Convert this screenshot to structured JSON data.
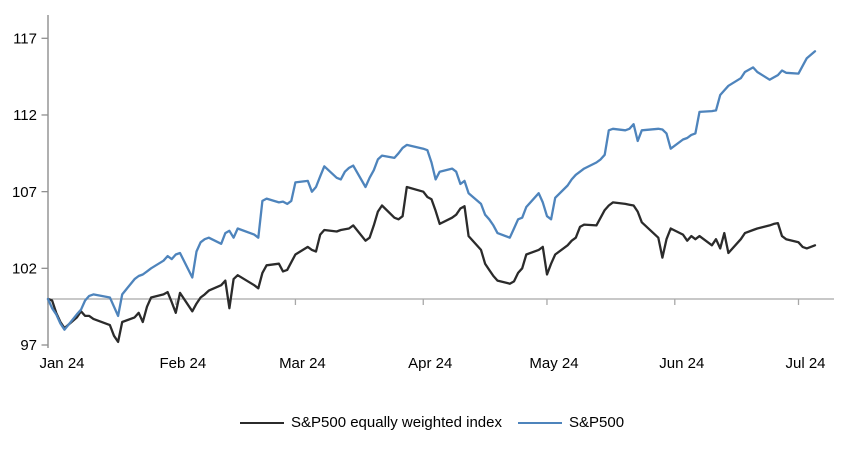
{
  "chart_data": {
    "type": "line",
    "title": "",
    "y_axis": {
      "range": [
        97,
        117
      ],
      "ticks": [
        97,
        102,
        107,
        112,
        117
      ],
      "tick_labels": [
        "97",
        "102",
        "107",
        "112",
        "117"
      ]
    },
    "x_axis": {
      "tick_labels": [
        "Jan 24",
        "Feb 24",
        "Mar 24",
        "Apr 24",
        "May 24",
        "Jun 24",
        "Jul 24"
      ],
      "month_day_offsets": [
        0,
        31,
        60,
        91,
        121,
        152,
        182
      ],
      "range_days": [
        0,
        186
      ]
    },
    "baseline_value": 100,
    "grid": "off",
    "legend_position": "bottom",
    "colors": {
      "equal_weight_line": "#2b2b2b",
      "sp500_line": "#4e84bc",
      "axis": "#8f8f8f",
      "baseline": "#a8a8a8"
    },
    "series": [
      {
        "name": "S&P500 equally weighted index",
        "color": "#2b2b2b",
        "points": [
          [
            0,
            100
          ],
          [
            1,
            99.9
          ],
          [
            2,
            99.1
          ],
          [
            3,
            98.5
          ],
          [
            4,
            98.1
          ],
          [
            7,
            98.8
          ],
          [
            8,
            99.2
          ],
          [
            9,
            98.9
          ],
          [
            10,
            98.9
          ],
          [
            11,
            98.7
          ],
          [
            15,
            98.3
          ],
          [
            16,
            97.6
          ],
          [
            17,
            97.2
          ],
          [
            18,
            98.5
          ],
          [
            21,
            98.8
          ],
          [
            22,
            99.1
          ],
          [
            23,
            98.5
          ],
          [
            24,
            99.5
          ],
          [
            25,
            100.1
          ],
          [
            28,
            100.3
          ],
          [
            29,
            100.45
          ],
          [
            30,
            99.8
          ],
          [
            31,
            99.1
          ],
          [
            32,
            100.4
          ],
          [
            35,
            99.2
          ],
          [
            36,
            99.7
          ],
          [
            37,
            100.1
          ],
          [
            38,
            100.3
          ],
          [
            39,
            100.55
          ],
          [
            42,
            100.9
          ],
          [
            43,
            101.2
          ],
          [
            44,
            99.4
          ],
          [
            45,
            101.3
          ],
          [
            46,
            101.55
          ],
          [
            50,
            100.9
          ],
          [
            51,
            100.7
          ],
          [
            52,
            101.7
          ],
          [
            53,
            102.2
          ],
          [
            56,
            102.3
          ],
          [
            57,
            101.8
          ],
          [
            58,
            101.9
          ],
          [
            59,
            102.4
          ],
          [
            60,
            102.9
          ],
          [
            63,
            103.4
          ],
          [
            64,
            103.2
          ],
          [
            65,
            103.1
          ],
          [
            66,
            104.2
          ],
          [
            67,
            104.5
          ],
          [
            70,
            104.4
          ],
          [
            71,
            104.5
          ],
          [
            72,
            104.55
          ],
          [
            73,
            104.6
          ],
          [
            74,
            104.8
          ],
          [
            77,
            103.8
          ],
          [
            78,
            104
          ],
          [
            79,
            104.8
          ],
          [
            80,
            105.7
          ],
          [
            81,
            106.1
          ],
          [
            84,
            105.3
          ],
          [
            85,
            105.2
          ],
          [
            86,
            105.4
          ],
          [
            87,
            107.3
          ],
          [
            91,
            107
          ],
          [
            92,
            106.65
          ],
          [
            93,
            106.5
          ],
          [
            94,
            105.75
          ],
          [
            95,
            104.9
          ],
          [
            98,
            105.3
          ],
          [
            99,
            105.5
          ],
          [
            100,
            105.9
          ],
          [
            101,
            106.05
          ],
          [
            102,
            104.1
          ],
          [
            105,
            103.2
          ],
          [
            106,
            102.3
          ],
          [
            107,
            101.9
          ],
          [
            108,
            101.5
          ],
          [
            109,
            101.2
          ],
          [
            112,
            101
          ],
          [
            113,
            101.15
          ],
          [
            114,
            101.7
          ],
          [
            115,
            102
          ],
          [
            116,
            102.9
          ],
          [
            119,
            103.2
          ],
          [
            120,
            103.4
          ],
          [
            121,
            101.6
          ],
          [
            122,
            102.3
          ],
          [
            123,
            102.9
          ],
          [
            126,
            103.5
          ],
          [
            127,
            103.8
          ],
          [
            128,
            104
          ],
          [
            129,
            104.7
          ],
          [
            130,
            104.85
          ],
          [
            133,
            104.8
          ],
          [
            134,
            105.3
          ],
          [
            135,
            105.8
          ],
          [
            136,
            106.1
          ],
          [
            137,
            106.3
          ],
          [
            140,
            106.2
          ],
          [
            141,
            106.15
          ],
          [
            142,
            106.1
          ],
          [
            143,
            105.7
          ],
          [
            144,
            105
          ],
          [
            148,
            104
          ],
          [
            149,
            102.7
          ],
          [
            150,
            103.9
          ],
          [
            151,
            104.6
          ],
          [
            154,
            104.2
          ],
          [
            155,
            103.8
          ],
          [
            156,
            104.1
          ],
          [
            157,
            103.9
          ],
          [
            158,
            104.1
          ],
          [
            161,
            103.5
          ],
          [
            162,
            103.9
          ],
          [
            163,
            103.3
          ],
          [
            164,
            104.3
          ],
          [
            165,
            103
          ],
          [
            168,
            103.9
          ],
          [
            169,
            104.3
          ],
          [
            171,
            104.5
          ],
          [
            172,
            104.6
          ],
          [
            175,
            104.8
          ],
          [
            176,
            104.9
          ],
          [
            177,
            104.95
          ],
          [
            178,
            104.1
          ],
          [
            179,
            103.9
          ],
          [
            182,
            103.7
          ],
          [
            183,
            103.4
          ],
          [
            184,
            103.3
          ],
          [
            186,
            103.5
          ]
        ]
      },
      {
        "name": "S&P500",
        "color": "#4e84bc",
        "points": [
          [
            0,
            100
          ],
          [
            1,
            99.4
          ],
          [
            2,
            99
          ],
          [
            3,
            98.4
          ],
          [
            4,
            98
          ],
          [
            7,
            99
          ],
          [
            8,
            99.3
          ],
          [
            9,
            99.9
          ],
          [
            10,
            100.2
          ],
          [
            11,
            100.3
          ],
          [
            15,
            100.1
          ],
          [
            16,
            99.5
          ],
          [
            17,
            98.9
          ],
          [
            18,
            100.3
          ],
          [
            21,
            101.3
          ],
          [
            22,
            101.5
          ],
          [
            23,
            101.6
          ],
          [
            24,
            101.8
          ],
          [
            25,
            102
          ],
          [
            28,
            102.5
          ],
          [
            29,
            102.8
          ],
          [
            30,
            102.6
          ],
          [
            31,
            102.9
          ],
          [
            32,
            103
          ],
          [
            35,
            101.4
          ],
          [
            36,
            103.1
          ],
          [
            37,
            103.7
          ],
          [
            38,
            103.9
          ],
          [
            39,
            104
          ],
          [
            42,
            103.6
          ],
          [
            43,
            104.3
          ],
          [
            44,
            104.45
          ],
          [
            45,
            104
          ],
          [
            46,
            104.6
          ],
          [
            50,
            104.2
          ],
          [
            51,
            104
          ],
          [
            52,
            106.4
          ],
          [
            53,
            106.55
          ],
          [
            56,
            106.3
          ],
          [
            57,
            106.35
          ],
          [
            58,
            106.2
          ],
          [
            59,
            106.4
          ],
          [
            60,
            107.6
          ],
          [
            63,
            107.7
          ],
          [
            64,
            107
          ],
          [
            65,
            107.3
          ],
          [
            66,
            108
          ],
          [
            67,
            108.65
          ],
          [
            70,
            107.9
          ],
          [
            71,
            107.8
          ],
          [
            72,
            108.3
          ],
          [
            73,
            108.55
          ],
          [
            74,
            108.7
          ],
          [
            77,
            107.3
          ],
          [
            78,
            107.9
          ],
          [
            79,
            108.4
          ],
          [
            80,
            109.1
          ],
          [
            81,
            109.35
          ],
          [
            84,
            109.2
          ],
          [
            85,
            109.5
          ],
          [
            86,
            109.85
          ],
          [
            87,
            110.05
          ],
          [
            91,
            109.8
          ],
          [
            92,
            109.7
          ],
          [
            93,
            108.9
          ],
          [
            94,
            107.8
          ],
          [
            95,
            108.3
          ],
          [
            98,
            108.5
          ],
          [
            99,
            108.3
          ],
          [
            100,
            107.5
          ],
          [
            101,
            107.7
          ],
          [
            102,
            106.9
          ],
          [
            105,
            106.2
          ],
          [
            106,
            105.5
          ],
          [
            107,
            105.2
          ],
          [
            108,
            104.8
          ],
          [
            109,
            104.3
          ],
          [
            112,
            104
          ],
          [
            113,
            104.6
          ],
          [
            114,
            105.2
          ],
          [
            115,
            105.3
          ],
          [
            116,
            106
          ],
          [
            119,
            106.9
          ],
          [
            120,
            106.3
          ],
          [
            121,
            105.4
          ],
          [
            122,
            105.2
          ],
          [
            123,
            106.6
          ],
          [
            126,
            107.4
          ],
          [
            127,
            107.8
          ],
          [
            128,
            108.1
          ],
          [
            129,
            108.3
          ],
          [
            130,
            108.5
          ],
          [
            133,
            108.9
          ],
          [
            134,
            109.1
          ],
          [
            135,
            109.4
          ],
          [
            136,
            111
          ],
          [
            137,
            111.1
          ],
          [
            140,
            111
          ],
          [
            141,
            111.1
          ],
          [
            142,
            111.4
          ],
          [
            143,
            110.3
          ],
          [
            144,
            111
          ],
          [
            148,
            111.1
          ],
          [
            149,
            111.05
          ],
          [
            150,
            110.8
          ],
          [
            151,
            109.8
          ],
          [
            154,
            110.4
          ],
          [
            155,
            110.5
          ],
          [
            156,
            110.7
          ],
          [
            157,
            110.8
          ],
          [
            158,
            112.2
          ],
          [
            161,
            112.25
          ],
          [
            162,
            112.3
          ],
          [
            163,
            113.3
          ],
          [
            164,
            113.6
          ],
          [
            165,
            113.9
          ],
          [
            168,
            114.4
          ],
          [
            169,
            114.8
          ],
          [
            171,
            115.1
          ],
          [
            172,
            114.8
          ],
          [
            175,
            114.3
          ],
          [
            176,
            114.45
          ],
          [
            177,
            114.6
          ],
          [
            178,
            114.9
          ],
          [
            179,
            114.75
          ],
          [
            182,
            114.7
          ],
          [
            183,
            115.2
          ],
          [
            184,
            115.7
          ],
          [
            186,
            116.15
          ]
        ]
      }
    ]
  }
}
